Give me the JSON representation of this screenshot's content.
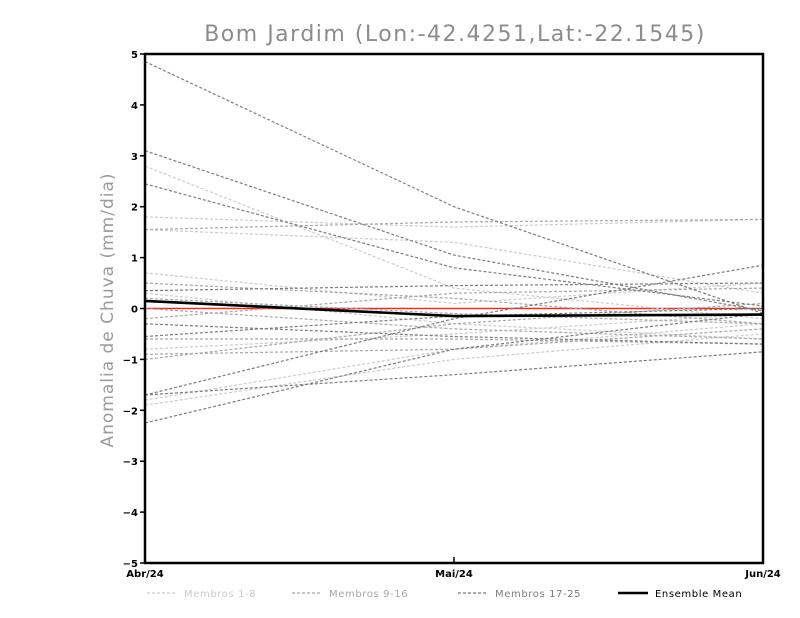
{
  "chart_data": {
    "type": "line",
    "title": "Bom Jardim (Lon:-42.4251,Lat:-22.1545)",
    "xlabel": "",
    "ylabel": "Anomalia de Chuva (mm/dia)",
    "categories": [
      "Abr/24",
      "Mai/24",
      "Jun/24"
    ],
    "y_ticks": [
      "5",
      "4",
      "3",
      "2",
      "1",
      "0",
      "-1",
      "-2",
      "-3",
      "-4",
      "-5"
    ],
    "ylim": [
      -5,
      5
    ],
    "grid": false,
    "legend_position": "bottom",
    "zero_line": {
      "value": 0,
      "color": "#e03030"
    },
    "groups": [
      {
        "name": "Membros 1-8",
        "color": "#cccccc",
        "dash": true
      },
      {
        "name": "Membros 9-16",
        "color": "#a8a8a8",
        "dash": true
      },
      {
        "name": "Membros 17-25",
        "color": "#7c7c7c",
        "dash": true
      },
      {
        "name": "Ensemble Mean",
        "color": "#000000",
        "dash": false
      }
    ],
    "series": [
      {
        "group": 0,
        "values": [
          2.8,
          0.4,
          -0.2
        ]
      },
      {
        "group": 0,
        "values": [
          1.8,
          1.6,
          1.75
        ]
      },
      {
        "group": 0,
        "values": [
          0.7,
          0.1,
          0.5
        ]
      },
      {
        "group": 0,
        "values": [
          -1.8,
          -0.8,
          -0.3
        ]
      },
      {
        "group": 0,
        "values": [
          -1.9,
          -1.0,
          -0.5
        ]
      },
      {
        "group": 0,
        "values": [
          -0.8,
          -0.5,
          -0.1
        ]
      },
      {
        "group": 0,
        "values": [
          0.3,
          -0.3,
          -0.6
        ]
      },
      {
        "group": 0,
        "values": [
          1.55,
          1.3,
          0.3
        ]
      },
      {
        "group": 1,
        "values": [
          1.55,
          1.7,
          1.75
        ]
      },
      {
        "group": 1,
        "values": [
          -0.9,
          -0.8,
          -0.4
        ]
      },
      {
        "group": 1,
        "values": [
          -1.0,
          -0.3,
          0.1
        ]
      },
      {
        "group": 1,
        "values": [
          0.5,
          0.2,
          -0.3
        ]
      },
      {
        "group": 1,
        "values": [
          -0.6,
          -0.6,
          -0.7
        ]
      },
      {
        "group": 1,
        "values": [
          0.2,
          -0.1,
          -0.3
        ]
      },
      {
        "group": 1,
        "values": [
          -0.2,
          0.3,
          0.4
        ]
      },
      {
        "group": 1,
        "values": [
          0.0,
          -0.4,
          -0.6
        ]
      },
      {
        "group": 2,
        "values": [
          4.85,
          2.0,
          -0.1
        ]
      },
      {
        "group": 2,
        "values": [
          3.1,
          1.05,
          -0.05
        ]
      },
      {
        "group": 2,
        "values": [
          2.45,
          0.8,
          0.05
        ]
      },
      {
        "group": 2,
        "values": [
          -1.7,
          -1.3,
          -0.85
        ]
      },
      {
        "group": 2,
        "values": [
          -1.7,
          -0.2,
          0.85
        ]
      },
      {
        "group": 2,
        "values": [
          -2.25,
          -0.8,
          -0.1
        ]
      },
      {
        "group": 2,
        "values": [
          0.35,
          0.45,
          0.5
        ]
      },
      {
        "group": 2,
        "values": [
          -0.3,
          -0.55,
          -0.7
        ]
      },
      {
        "group": 2,
        "values": [
          -0.55,
          -0.15,
          0.0
        ]
      }
    ],
    "ensemble_mean": [
      0.15,
      -0.15,
      -0.12
    ]
  }
}
